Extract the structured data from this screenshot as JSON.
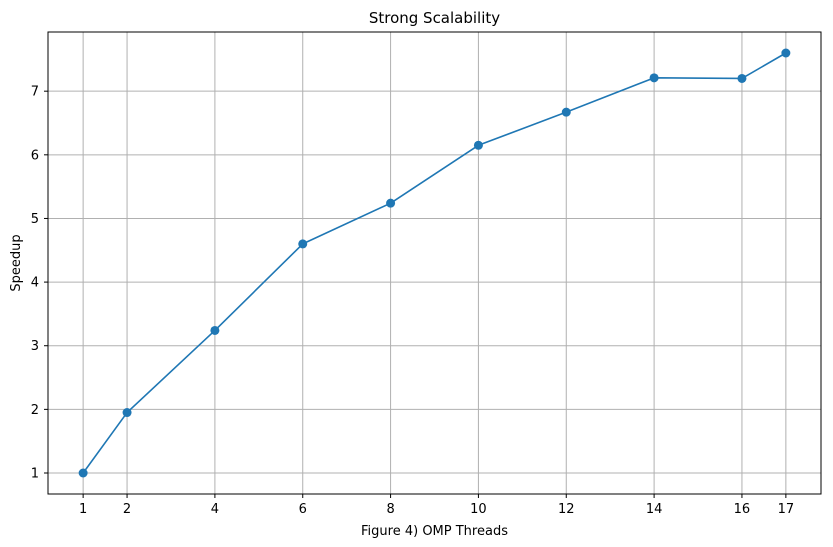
{
  "chart_data": {
    "type": "line",
    "title": "Strong Scalability",
    "xlabel": "Figure 4) OMP Threads",
    "ylabel": "Speedup",
    "x": [
      1,
      2,
      4,
      6,
      8,
      10,
      12,
      14,
      16,
      17
    ],
    "series": [
      {
        "values": [
          1.0,
          1.95,
          3.24,
          4.6,
          5.24,
          6.15,
          6.67,
          7.21,
          7.2,
          7.6
        ],
        "color": "#1f77b4",
        "marker": "circle"
      }
    ],
    "x_ticks": [
      1,
      2,
      4,
      6,
      8,
      10,
      12,
      14,
      16,
      17
    ],
    "y_ticks": [
      1,
      2,
      3,
      4,
      5,
      6,
      7
    ],
    "xlim": [
      0.2,
      17.8
    ],
    "ylim": [
      0.67,
      7.93
    ],
    "grid": true,
    "legend": "none"
  }
}
